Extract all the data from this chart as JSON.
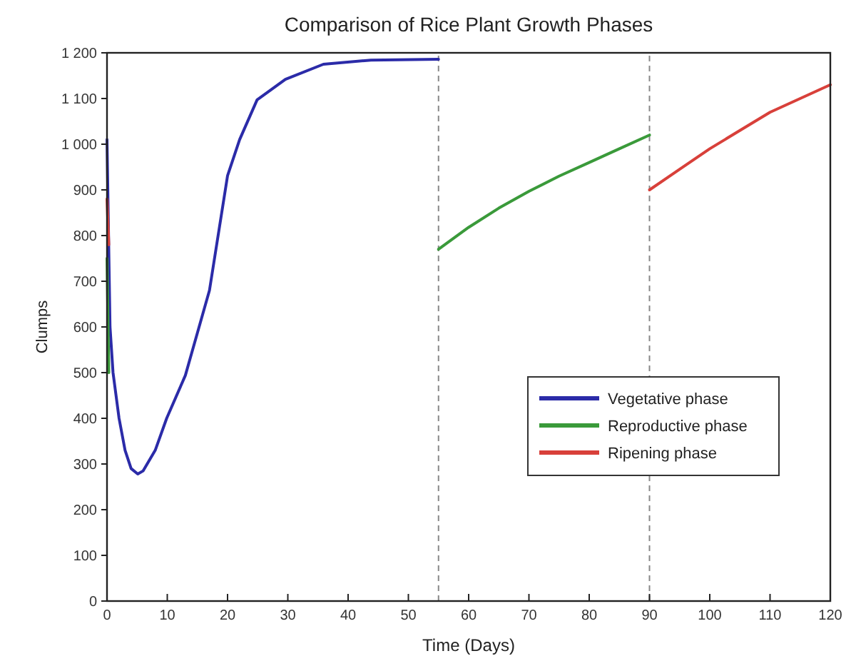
{
  "chart_data": {
    "type": "line",
    "title": "Comparison of Rice Plant Growth Phases",
    "xlabel": "Time (Days)",
    "ylabel": "Clumps",
    "xlim": [
      0,
      120
    ],
    "xticks": [
      0,
      10,
      20,
      30,
      40,
      50,
      60,
      70,
      80,
      90,
      100,
      110,
      120
    ],
    "ylim": [
      0,
      1200
    ],
    "yticks": [
      0,
      100,
      200,
      300,
      400,
      500,
      600,
      700,
      800,
      900,
      {
        "value": 1000,
        "label": "1 000"
      },
      {
        "value": 1100,
        "label": "1 100"
      },
      {
        "value": 1200,
        "label": "1 200"
      }
    ],
    "grid": false,
    "legend": "right",
    "line_style": "solid",
    "marker": "none",
    "ref_lines": [
      {
        "axis": "x",
        "value": 55,
        "color": "#888888",
        "line_style": "dashed"
      },
      {
        "axis": "x",
        "value": 90,
        "color": "#888888",
        "line_style": "dashed"
      }
    ],
    "series": [
      {
        "name": "Vegetative phase",
        "color": "#2b2ba8",
        "x": [
          0,
          0.5,
          1,
          2,
          3,
          4,
          5.1,
          6,
          8,
          9.9,
          13,
          17,
          20,
          22,
          24.9,
          29.6,
          35.9,
          43.8,
          55
        ],
        "values": [
          1010,
          600,
          500,
          400,
          330,
          290,
          278,
          285,
          330,
          400,
          494,
          680,
          931,
          1010,
          1097,
          1142,
          1175,
          1184,
          1186
        ]
      },
      {
        "name": "Reproductive phase",
        "color": "#3a9a3a",
        "x": [
          55,
          60,
          65,
          70,
          75,
          80,
          85,
          90
        ],
        "values": [
          770,
          818,
          860,
          897,
          930,
          960,
          990,
          1020
        ]
      },
      {
        "name": "Ripening phase",
        "color": "#d8403a",
        "x": [
          90,
          95,
          100,
          105,
          110,
          115,
          120
        ],
        "values": [
          900,
          945,
          990,
          1030,
          1070,
          1100,
          1130
        ]
      },
      {
        "color": "#3a9a3a",
        "x": [
          0,
          0.3
        ],
        "values": [
          750,
          500
        ]
      },
      {
        "color": "#d8403a",
        "x": [
          0,
          0.3
        ],
        "values": [
          880,
          780
        ]
      }
    ]
  }
}
